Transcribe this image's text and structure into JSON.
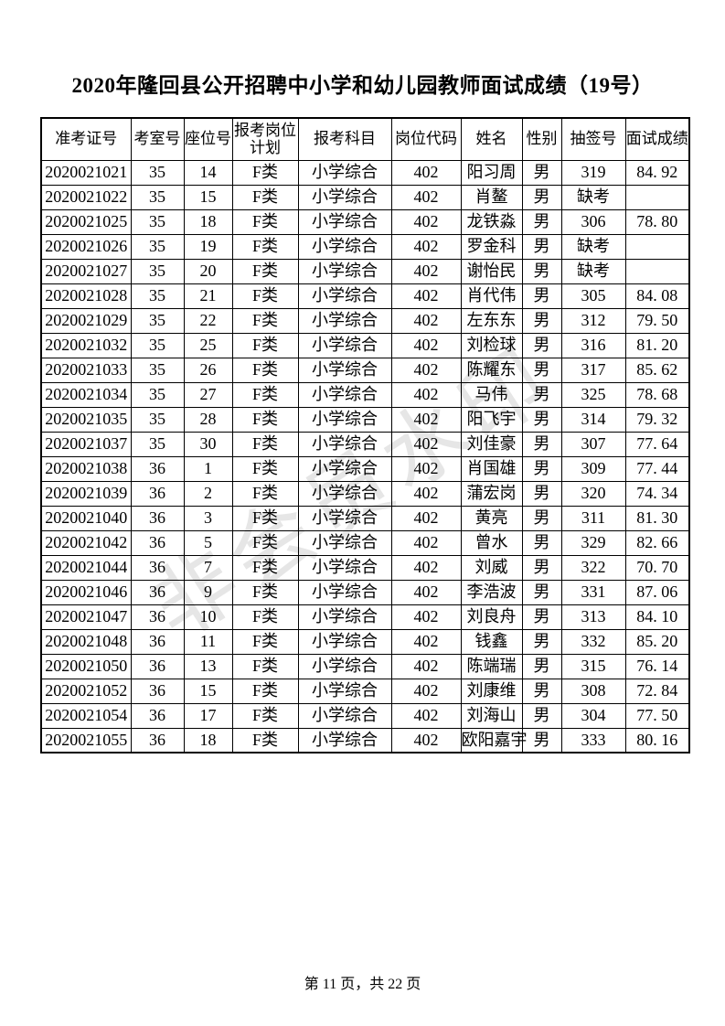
{
  "page": {
    "title": "2020年隆回县公开招聘中小学和幼儿园教师面试成绩（19号）",
    "footer": "第 11 页，共 22 页",
    "watermark": "非会员水印"
  },
  "table": {
    "columns": [
      "准考证号",
      "考室号",
      "座位号",
      "报考岗位计划",
      "报考科目",
      "岗位代码",
      "姓名",
      "性别",
      "抽签号",
      "面试成绩"
    ],
    "absent_label": "缺考",
    "rows": [
      [
        "2020021021",
        "35",
        "14",
        "F类",
        "小学综合",
        "402",
        "阳习周",
        "男",
        "319",
        "84. 92"
      ],
      [
        "2020021022",
        "35",
        "15",
        "F类",
        "小学综合",
        "402",
        "肖鳌",
        "男",
        "缺考",
        ""
      ],
      [
        "2020021025",
        "35",
        "18",
        "F类",
        "小学综合",
        "402",
        "龙铁淼",
        "男",
        "306",
        "78. 80"
      ],
      [
        "2020021026",
        "35",
        "19",
        "F类",
        "小学综合",
        "402",
        "罗金科",
        "男",
        "缺考",
        ""
      ],
      [
        "2020021027",
        "35",
        "20",
        "F类",
        "小学综合",
        "402",
        "谢怡民",
        "男",
        "缺考",
        ""
      ],
      [
        "2020021028",
        "35",
        "21",
        "F类",
        "小学综合",
        "402",
        "肖代伟",
        "男",
        "305",
        "84. 08"
      ],
      [
        "2020021029",
        "35",
        "22",
        "F类",
        "小学综合",
        "402",
        "左东东",
        "男",
        "312",
        "79. 50"
      ],
      [
        "2020021032",
        "35",
        "25",
        "F类",
        "小学综合",
        "402",
        "刘检球",
        "男",
        "316",
        "81. 20"
      ],
      [
        "2020021033",
        "35",
        "26",
        "F类",
        "小学综合",
        "402",
        "陈耀东",
        "男",
        "317",
        "85. 62"
      ],
      [
        "2020021034",
        "35",
        "27",
        "F类",
        "小学综合",
        "402",
        "马伟",
        "男",
        "325",
        "78. 68"
      ],
      [
        "2020021035",
        "35",
        "28",
        "F类",
        "小学综合",
        "402",
        "阳飞宇",
        "男",
        "314",
        "79. 32"
      ],
      [
        "2020021037",
        "35",
        "30",
        "F类",
        "小学综合",
        "402",
        "刘佳豪",
        "男",
        "307",
        "77. 64"
      ],
      [
        "2020021038",
        "36",
        "1",
        "F类",
        "小学综合",
        "402",
        "肖国雄",
        "男",
        "309",
        "77. 44"
      ],
      [
        "2020021039",
        "36",
        "2",
        "F类",
        "小学综合",
        "402",
        "蒲宏岗",
        "男",
        "320",
        "74. 34"
      ],
      [
        "2020021040",
        "36",
        "3",
        "F类",
        "小学综合",
        "402",
        "黄亮",
        "男",
        "311",
        "81. 30"
      ],
      [
        "2020021042",
        "36",
        "5",
        "F类",
        "小学综合",
        "402",
        "曾水",
        "男",
        "329",
        "82. 66"
      ],
      [
        "2020021044",
        "36",
        "7",
        "F类",
        "小学综合",
        "402",
        "刘威",
        "男",
        "322",
        "70. 70"
      ],
      [
        "2020021046",
        "36",
        "9",
        "F类",
        "小学综合",
        "402",
        "李浩波",
        "男",
        "331",
        "87. 06"
      ],
      [
        "2020021047",
        "36",
        "10",
        "F类",
        "小学综合",
        "402",
        "刘良舟",
        "男",
        "313",
        "84. 10"
      ],
      [
        "2020021048",
        "36",
        "11",
        "F类",
        "小学综合",
        "402",
        "钱鑫",
        "男",
        "332",
        "85. 20"
      ],
      [
        "2020021050",
        "36",
        "13",
        "F类",
        "小学综合",
        "402",
        "陈端瑞",
        "男",
        "315",
        "76. 14"
      ],
      [
        "2020021052",
        "36",
        "15",
        "F类",
        "小学综合",
        "402",
        "刘康维",
        "男",
        "308",
        "72. 84"
      ],
      [
        "2020021054",
        "36",
        "17",
        "F类",
        "小学综合",
        "402",
        "刘海山",
        "男",
        "304",
        "77. 50"
      ],
      [
        "2020021055",
        "36",
        "18",
        "F类",
        "小学综合",
        "402",
        "欧阳嘉宇",
        "男",
        "333",
        "80. 16"
      ]
    ]
  }
}
